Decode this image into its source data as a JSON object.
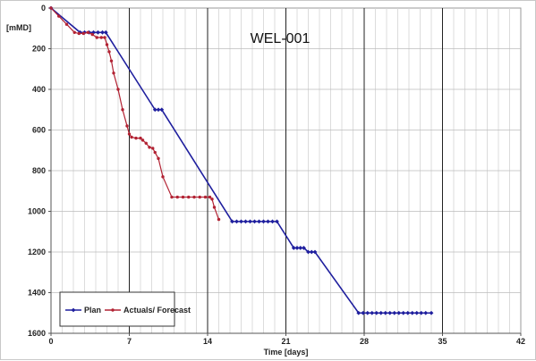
{
  "chart_data": {
    "type": "line",
    "title": "WEL-001",
    "xlabel": "Time [days]",
    "ylabel": "[mMD]",
    "xlim": [
      0,
      42
    ],
    "ylim": [
      0,
      1600
    ],
    "y_inverted": true,
    "x_ticks": [
      0,
      7,
      14,
      21,
      28,
      35,
      42
    ],
    "y_ticks": [
      0,
      200,
      400,
      600,
      800,
      1000,
      1200,
      1400,
      1600
    ],
    "grid": {
      "minor_x_step": 1,
      "major_x_step": 7,
      "major_y_step": 200
    },
    "legend_position": "bottom-left",
    "series": [
      {
        "name": "Plan",
        "color": "#1f1f9e",
        "marker": "diamond",
        "points": [
          [
            0,
            0
          ],
          [
            2.6,
            120
          ],
          [
            3.0,
            120
          ],
          [
            3.4,
            120
          ],
          [
            3.8,
            120
          ],
          [
            4.2,
            120
          ],
          [
            4.6,
            120
          ],
          [
            4.9,
            120
          ],
          [
            9.3,
            500
          ],
          [
            9.6,
            500
          ],
          [
            9.9,
            500
          ],
          [
            16.2,
            1050
          ],
          [
            16.6,
            1050
          ],
          [
            17.0,
            1050
          ],
          [
            17.4,
            1050
          ],
          [
            17.8,
            1050
          ],
          [
            18.2,
            1050
          ],
          [
            18.6,
            1050
          ],
          [
            19.0,
            1050
          ],
          [
            19.4,
            1050
          ],
          [
            19.8,
            1050
          ],
          [
            20.2,
            1050
          ],
          [
            21.7,
            1180
          ],
          [
            22.0,
            1180
          ],
          [
            22.3,
            1180
          ],
          [
            22.6,
            1180
          ],
          [
            23.0,
            1200
          ],
          [
            23.3,
            1200
          ],
          [
            23.6,
            1200
          ],
          [
            27.5,
            1500
          ],
          [
            27.9,
            1500
          ],
          [
            28.3,
            1500
          ],
          [
            28.7,
            1500
          ],
          [
            29.1,
            1500
          ],
          [
            29.5,
            1500
          ],
          [
            29.9,
            1500
          ],
          [
            30.3,
            1500
          ],
          [
            30.7,
            1500
          ],
          [
            31.1,
            1500
          ],
          [
            31.5,
            1500
          ],
          [
            31.9,
            1500
          ],
          [
            32.3,
            1500
          ],
          [
            32.7,
            1500
          ],
          [
            33.1,
            1500
          ],
          [
            33.5,
            1500
          ],
          [
            34.0,
            1500
          ]
        ]
      },
      {
        "name": "Actuals/ Forecast",
        "color": "#b22233",
        "marker": "circle",
        "points": [
          [
            0,
            0
          ],
          [
            0.7,
            40
          ],
          [
            1.4,
            80
          ],
          [
            2.1,
            120
          ],
          [
            2.5,
            125
          ],
          [
            2.9,
            125
          ],
          [
            3.3,
            120
          ],
          [
            3.7,
            130
          ],
          [
            4.1,
            145
          ],
          [
            4.5,
            145
          ],
          [
            4.8,
            145
          ],
          [
            5.0,
            180
          ],
          [
            5.2,
            215
          ],
          [
            5.4,
            260
          ],
          [
            5.6,
            320
          ],
          [
            6.0,
            400
          ],
          [
            6.4,
            500
          ],
          [
            6.8,
            580
          ],
          [
            7.0,
            620
          ],
          [
            7.2,
            635
          ],
          [
            7.6,
            640
          ],
          [
            8.0,
            640
          ],
          [
            8.2,
            650
          ],
          [
            8.5,
            665
          ],
          [
            8.8,
            685
          ],
          [
            9.1,
            690
          ],
          [
            9.3,
            710
          ],
          [
            9.6,
            740
          ],
          [
            10.0,
            830
          ],
          [
            10.8,
            930
          ],
          [
            11.3,
            930
          ],
          [
            11.8,
            930
          ],
          [
            12.3,
            930
          ],
          [
            12.8,
            930
          ],
          [
            13.3,
            930
          ],
          [
            13.8,
            930
          ],
          [
            14.2,
            930
          ],
          [
            14.4,
            940
          ],
          [
            14.6,
            980
          ],
          [
            15.0,
            1040
          ]
        ]
      }
    ]
  }
}
